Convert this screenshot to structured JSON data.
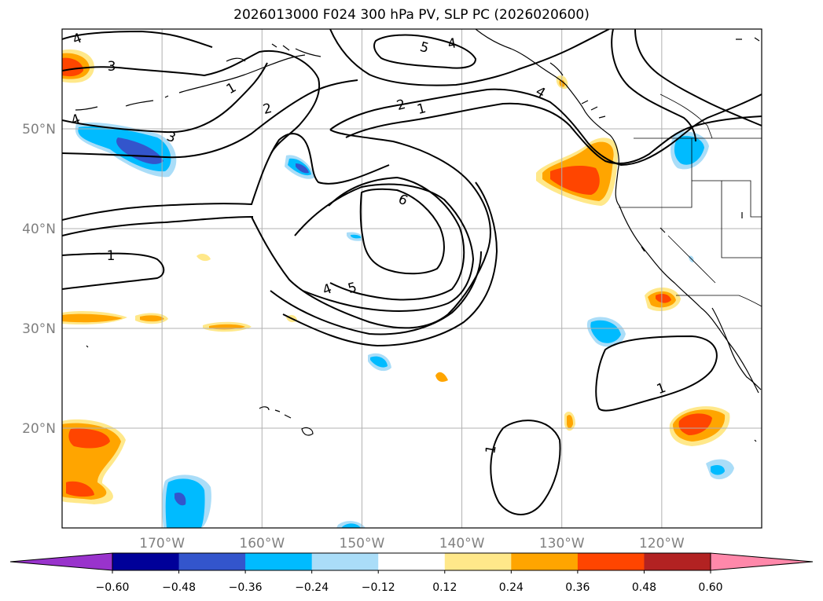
{
  "title": "2026013000 F024 300 hPa PV, SLP PC (2026020600)",
  "map": {
    "lon_range": [
      -180,
      -110
    ],
    "lat_range": [
      10,
      60
    ],
    "lon_ticks": [
      -170,
      -160,
      -150,
      -140,
      -130,
      -120
    ],
    "lon_tick_labels": [
      "170°W",
      "160°W",
      "150°W",
      "140°W",
      "130°W",
      "120°W"
    ],
    "lat_ticks": [
      20,
      30,
      40,
      50
    ],
    "lat_tick_labels": [
      "20°N",
      "30°N",
      "40°N",
      "50°N"
    ],
    "gridlines": true
  },
  "colorbar": {
    "levels": [
      -0.6,
      -0.48,
      -0.36,
      -0.24,
      -0.12,
      0.12,
      0.24,
      0.36,
      0.48,
      0.6
    ],
    "tick_labels": [
      "−0.60",
      "−0.48",
      "−0.36",
      "−0.24",
      "−0.12",
      "0.12",
      "0.24",
      "0.36",
      "0.48",
      "0.60"
    ],
    "colors": [
      "#9933cc",
      "#000099",
      "#3355cc",
      "#00bbff",
      "#aaddf8",
      "#ffffff",
      "#ffe88a",
      "#ffa500",
      "#ff4500",
      "#b22222",
      "#ff88aa"
    ],
    "extend": "both"
  },
  "pv_colors": {
    "neg_strong": "#3355cc",
    "neg_mid": "#00bbff",
    "neg_weak": "#aaddf8",
    "pos_weak": "#ffe88a",
    "pos_mid": "#ffa500",
    "pos_strong": "#ff4500"
  },
  "contour_labels": [
    "4",
    "3",
    "4",
    "3",
    "1",
    "2",
    "1",
    "5",
    "4",
    "2",
    "1",
    "4",
    "6",
    "4",
    "5",
    "1",
    "1"
  ]
}
